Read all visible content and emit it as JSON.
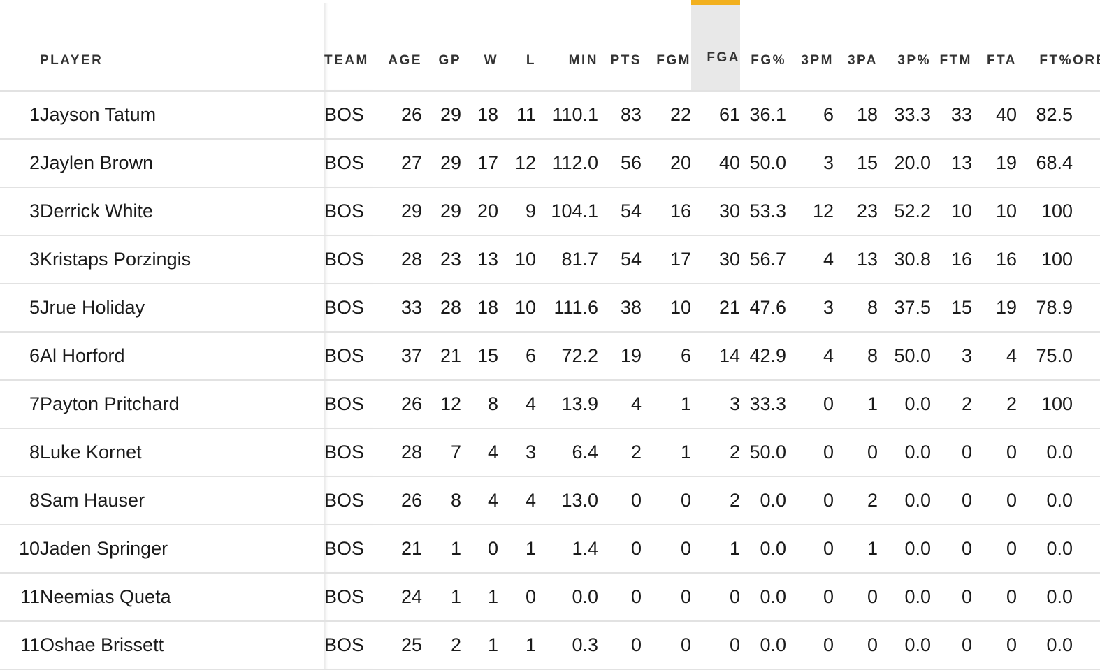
{
  "columns": [
    "",
    "PLAYER",
    "TEAM",
    "AGE",
    "GP",
    "W",
    "L",
    "MIN",
    "PTS",
    "FGM",
    "FGA",
    "FG%",
    "3PM",
    "3PA",
    "3P%",
    "FTM",
    "FTA",
    "FT%",
    "OREB"
  ],
  "sorted_column": "FGA",
  "accent_color": "#f2b01e",
  "link_color": "#1766c2",
  "rows": [
    [
      "1",
      "Jayson Tatum",
      "BOS",
      "26",
      "29",
      "18",
      "11",
      "110.1",
      "83",
      "22",
      "61",
      "36.1",
      "6",
      "18",
      "33.3",
      "33",
      "40",
      "82.5",
      ""
    ],
    [
      "2",
      "Jaylen Brown",
      "BOS",
      "27",
      "29",
      "17",
      "12",
      "112.0",
      "56",
      "20",
      "40",
      "50.0",
      "3",
      "15",
      "20.0",
      "13",
      "19",
      "68.4",
      ""
    ],
    [
      "3",
      "Derrick White",
      "BOS",
      "29",
      "29",
      "20",
      "9",
      "104.1",
      "54",
      "16",
      "30",
      "53.3",
      "12",
      "23",
      "52.2",
      "10",
      "10",
      "100",
      ""
    ],
    [
      "3",
      "Kristaps Porzingis",
      "BOS",
      "28",
      "23",
      "13",
      "10",
      "81.7",
      "54",
      "17",
      "30",
      "56.7",
      "4",
      "13",
      "30.8",
      "16",
      "16",
      "100",
      ""
    ],
    [
      "5",
      "Jrue Holiday",
      "BOS",
      "33",
      "28",
      "18",
      "10",
      "111.6",
      "38",
      "10",
      "21",
      "47.6",
      "3",
      "8",
      "37.5",
      "15",
      "19",
      "78.9",
      ""
    ],
    [
      "6",
      "Al Horford",
      "BOS",
      "37",
      "21",
      "15",
      "6",
      "72.2",
      "19",
      "6",
      "14",
      "42.9",
      "4",
      "8",
      "50.0",
      "3",
      "4",
      "75.0",
      ""
    ],
    [
      "7",
      "Payton Pritchard",
      "BOS",
      "26",
      "12",
      "8",
      "4",
      "13.9",
      "4",
      "1",
      "3",
      "33.3",
      "0",
      "1",
      "0.0",
      "2",
      "2",
      "100",
      ""
    ],
    [
      "8",
      "Luke Kornet",
      "BOS",
      "28",
      "7",
      "4",
      "3",
      "6.4",
      "2",
      "1",
      "2",
      "50.0",
      "0",
      "0",
      "0.0",
      "0",
      "0",
      "0.0",
      ""
    ],
    [
      "8",
      "Sam Hauser",
      "BOS",
      "26",
      "8",
      "4",
      "4",
      "13.0",
      "0",
      "0",
      "2",
      "0.0",
      "0",
      "2",
      "0.0",
      "0",
      "0",
      "0.0",
      ""
    ],
    [
      "10",
      "Jaden Springer",
      "BOS",
      "21",
      "1",
      "0",
      "1",
      "1.4",
      "0",
      "0",
      "1",
      "0.0",
      "0",
      "1",
      "0.0",
      "0",
      "0",
      "0.0",
      ""
    ],
    [
      "11",
      "Neemias Queta",
      "BOS",
      "24",
      "1",
      "1",
      "0",
      "0.0",
      "0",
      "0",
      "0",
      "0.0",
      "0",
      "0",
      "0.0",
      "0",
      "0",
      "0.0",
      ""
    ],
    [
      "11",
      "Oshae Brissett",
      "BOS",
      "25",
      "2",
      "1",
      "1",
      "0.3",
      "0",
      "0",
      "0",
      "0.0",
      "0",
      "0",
      "0.0",
      "0",
      "0",
      "0.0",
      ""
    ]
  ]
}
